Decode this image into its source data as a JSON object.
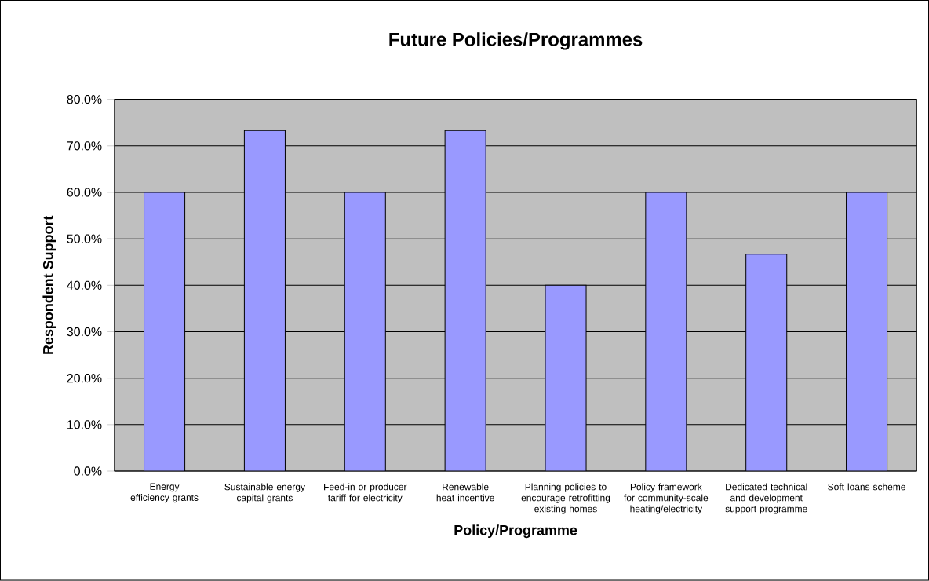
{
  "chart_data": {
    "type": "bar",
    "title": "Future Policies/Programmes",
    "xlabel": "Policy/Programme",
    "ylabel": "Respondent Support",
    "categories": [
      "Energy efficiency grants",
      "Sustainable energy capital grants",
      "Feed-in or producer tariff for electricity",
      "Renewable heat incentive",
      "Planning policies to encourage retrofitting existing homes",
      "Policy framework for community-scale heating/electricity",
      "Dedicated technical and development support programme",
      "Soft loans scheme"
    ],
    "values": [
      60,
      73.3,
      60,
      73.3,
      40,
      60,
      46.7,
      60
    ],
    "color": "#9999ff",
    "ylim": [
      0,
      80
    ],
    "yticks": [
      {
        "value": 0,
        "label": "0.0%"
      },
      {
        "value": 10,
        "label": "10.0%"
      },
      {
        "value": 20,
        "label": "20.0%"
      },
      {
        "value": 30,
        "label": "30.0%"
      },
      {
        "value": 40,
        "label": "40.0%"
      },
      {
        "value": 50,
        "label": "50.0%"
      },
      {
        "value": 60,
        "label": "60.0%"
      },
      {
        "value": 70,
        "label": "70.0%"
      },
      {
        "value": 80,
        "label": "80.0%"
      }
    ],
    "grid": "y"
  }
}
